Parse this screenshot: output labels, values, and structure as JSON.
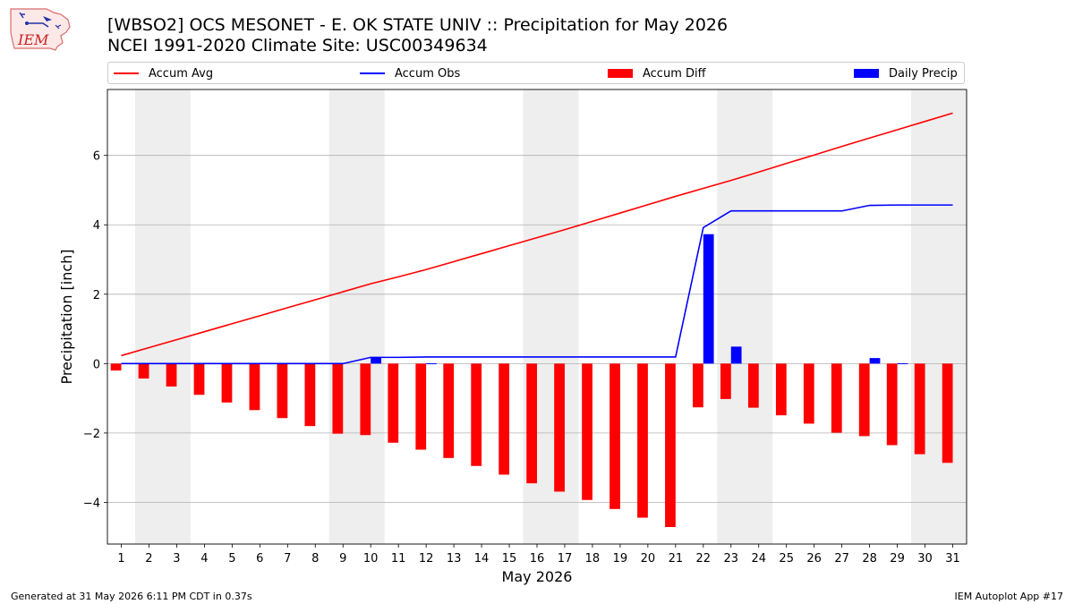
{
  "header": {
    "logo_text": "IEM",
    "title_line1": "[WBSO2] OCS MESONET - E. OK STATE UNIV :: Precipitation for May 2026",
    "title_line2": "NCEI 1991-2020 Climate Site: USC00349634"
  },
  "footer": {
    "generated": "Generated at 31 May 2026 6:11 PM CDT in 0.37s",
    "app": "IEM Autoplot App #17"
  },
  "colors": {
    "avg": "#ff0000",
    "obs": "#0000ff",
    "diff": "#ff0000",
    "daily": "#0000ff",
    "weekend": "#eeeeee",
    "grid": "#b0b0b0"
  },
  "chart_data": {
    "type": "bar",
    "xlabel": "May 2026",
    "ylabel": "Precipitation [inch]",
    "ylim": [
      -5.2,
      7.9
    ],
    "yticks": [
      -4,
      -2,
      0,
      2,
      4,
      6
    ],
    "xlim": [
      0.5,
      31.5
    ],
    "grid": "horizontal",
    "legend_position": "top",
    "days": [
      1,
      2,
      3,
      4,
      5,
      6,
      7,
      8,
      9,
      10,
      11,
      12,
      13,
      14,
      15,
      16,
      17,
      18,
      19,
      20,
      21,
      22,
      23,
      24,
      25,
      26,
      27,
      28,
      29,
      30,
      31
    ],
    "weekends": [
      [
        2,
        3
      ],
      [
        9,
        10
      ],
      [
        16,
        17
      ],
      [
        23,
        24
      ],
      [
        30,
        31
      ]
    ],
    "series": [
      {
        "name": "Accum Avg",
        "kind": "line",
        "values": [
          0.23,
          0.46,
          0.69,
          0.92,
          1.15,
          1.38,
          1.61,
          1.84,
          2.07,
          2.3,
          2.5,
          2.71,
          2.94,
          3.17,
          3.4,
          3.63,
          3.86,
          4.1,
          4.34,
          4.58,
          4.82,
          5.05,
          5.28,
          5.52,
          5.77,
          6.01,
          6.26,
          6.5,
          6.74,
          6.98,
          7.22
        ]
      },
      {
        "name": "Accum Obs",
        "kind": "line",
        "values": [
          0,
          0,
          0,
          0,
          0,
          0,
          0,
          0,
          0,
          0.18,
          0.18,
          0.19,
          0.19,
          0.19,
          0.19,
          0.19,
          0.19,
          0.19,
          0.19,
          0.19,
          0.19,
          3.92,
          4.4,
          4.4,
          4.4,
          4.4,
          4.4,
          4.56,
          4.57,
          4.57,
          4.57
        ]
      },
      {
        "name": "Accum Diff",
        "kind": "bar",
        "values": [
          -0.2,
          -0.43,
          -0.66,
          -0.9,
          -1.12,
          -1.34,
          -1.57,
          -1.8,
          -2.02,
          -2.06,
          -2.28,
          -2.48,
          -2.72,
          -2.95,
          -3.2,
          -3.45,
          -3.69,
          -3.93,
          -4.19,
          -4.44,
          -4.71,
          -1.26,
          -1.02,
          -1.27,
          -1.49,
          -1.73,
          -1.99,
          -2.09,
          -2.35,
          -2.61,
          -2.86
        ]
      },
      {
        "name": "Daily Precip",
        "kind": "bar",
        "values": [
          0,
          0,
          0,
          0,
          0,
          0,
          0,
          0,
          0,
          0.18,
          0,
          0.01,
          0,
          0,
          0,
          0,
          0,
          0,
          0,
          0,
          0,
          3.73,
          0.49,
          0,
          0,
          0,
          0,
          0.16,
          0.01,
          0,
          0
        ]
      }
    ]
  }
}
